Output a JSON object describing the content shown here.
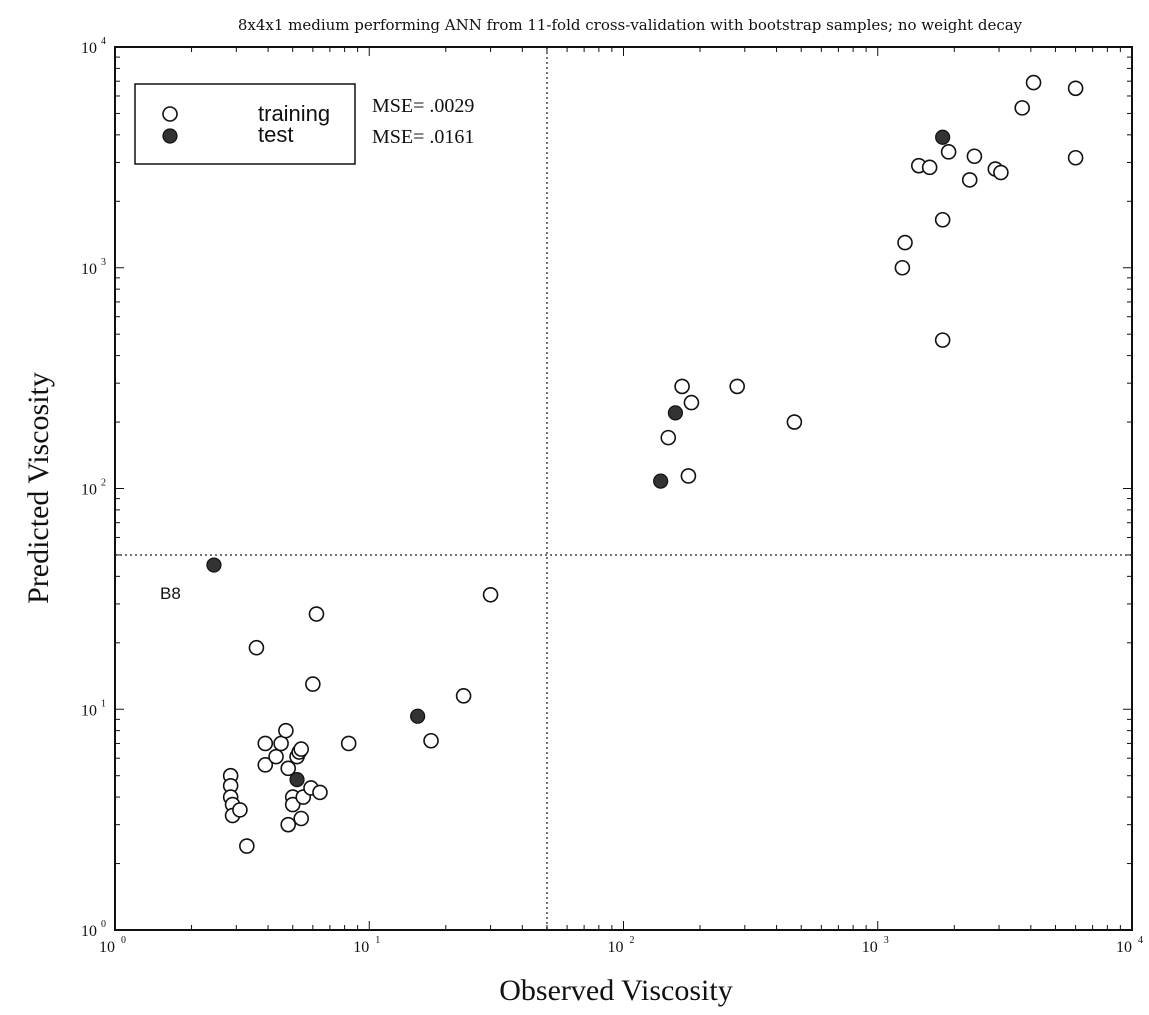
{
  "chart_data": {
    "type": "scatter",
    "title": "8x4x1 medium performing ANN from 11-fold cross-validation with bootstrap samples; no weight decay",
    "xlabel": "Observed Viscosity",
    "ylabel": "Predicted Viscosity",
    "xscale": "log",
    "yscale": "log",
    "xlim": [
      1,
      10000
    ],
    "ylim": [
      1,
      10000
    ],
    "xticks": [
      {
        "base": "10",
        "exp": "0",
        "value": 1
      },
      {
        "base": "10",
        "exp": "1",
        "value": 10
      },
      {
        "base": "10",
        "exp": "2",
        "value": 100
      },
      {
        "base": "10",
        "exp": "3",
        "value": 1000
      },
      {
        "base": "10",
        "exp": "4",
        "value": 10000
      }
    ],
    "yticks": [
      {
        "base": "10",
        "exp": "0",
        "value": 1
      },
      {
        "base": "10",
        "exp": "1",
        "value": 10
      },
      {
        "base": "10",
        "exp": "2",
        "value": 100
      },
      {
        "base": "10",
        "exp": "3",
        "value": 1000
      },
      {
        "base": "10",
        "exp": "4",
        "value": 10000
      }
    ],
    "reference_lines": {
      "x": 50,
      "y": 50,
      "style": "dotted"
    },
    "grid": false,
    "legend": {
      "position": "top-left",
      "entries": [
        {
          "label": "training",
          "marker": "open-circle",
          "mse": "MSE= .0029"
        },
        {
          "label": "test",
          "marker": "filled-circle",
          "mse": "MSE= .0161"
        }
      ]
    },
    "annotations": [
      {
        "text": "B8",
        "x": 2.45,
        "y": 45
      }
    ],
    "series": [
      {
        "name": "training",
        "marker": "open-circle",
        "points": [
          [
            2.85,
            5.0
          ],
          [
            2.85,
            4.5
          ],
          [
            2.85,
            4.0
          ],
          [
            2.9,
            3.7
          ],
          [
            2.9,
            3.3
          ],
          [
            3.1,
            3.5
          ],
          [
            3.3,
            2.4
          ],
          [
            3.6,
            19.0
          ],
          [
            3.9,
            7.0
          ],
          [
            3.9,
            5.6
          ],
          [
            4.3,
            6.1
          ],
          [
            4.5,
            7.0
          ],
          [
            4.7,
            8.0
          ],
          [
            4.8,
            5.4
          ],
          [
            4.8,
            3.0
          ],
          [
            5.0,
            4.0
          ],
          [
            5.0,
            3.7
          ],
          [
            5.2,
            6.1
          ],
          [
            5.3,
            6.4
          ],
          [
            5.4,
            6.6
          ],
          [
            5.5,
            4.0
          ],
          [
            5.4,
            3.2
          ],
          [
            5.9,
            4.4
          ],
          [
            6.0,
            13.0
          ],
          [
            6.2,
            27.0
          ],
          [
            6.4,
            4.2
          ],
          [
            8.3,
            7.0
          ],
          [
            17.5,
            7.2
          ],
          [
            23.5,
            11.5
          ],
          [
            30.0,
            33.0
          ],
          [
            150,
            170
          ],
          [
            170,
            290
          ],
          [
            180,
            114
          ],
          [
            185,
            245
          ],
          [
            280,
            290
          ],
          [
            470,
            200
          ],
          [
            1250,
            1000
          ],
          [
            1280,
            1300
          ],
          [
            1450,
            2900
          ],
          [
            1600,
            2850
          ],
          [
            1800,
            1650
          ],
          [
            1800,
            470
          ],
          [
            1900,
            3350
          ],
          [
            2300,
            2500
          ],
          [
            2400,
            3200
          ],
          [
            2900,
            2800
          ],
          [
            3050,
            2700
          ],
          [
            3700,
            5300
          ],
          [
            4100,
            6900
          ],
          [
            6000,
            6500
          ],
          [
            6000,
            3150
          ]
        ]
      },
      {
        "name": "test",
        "marker": "filled-circle",
        "points": [
          [
            2.45,
            45
          ],
          [
            5.2,
            4.8
          ],
          [
            15.5,
            9.3
          ],
          [
            140,
            108
          ],
          [
            160,
            220
          ],
          [
            1800,
            3900
          ]
        ]
      }
    ]
  }
}
